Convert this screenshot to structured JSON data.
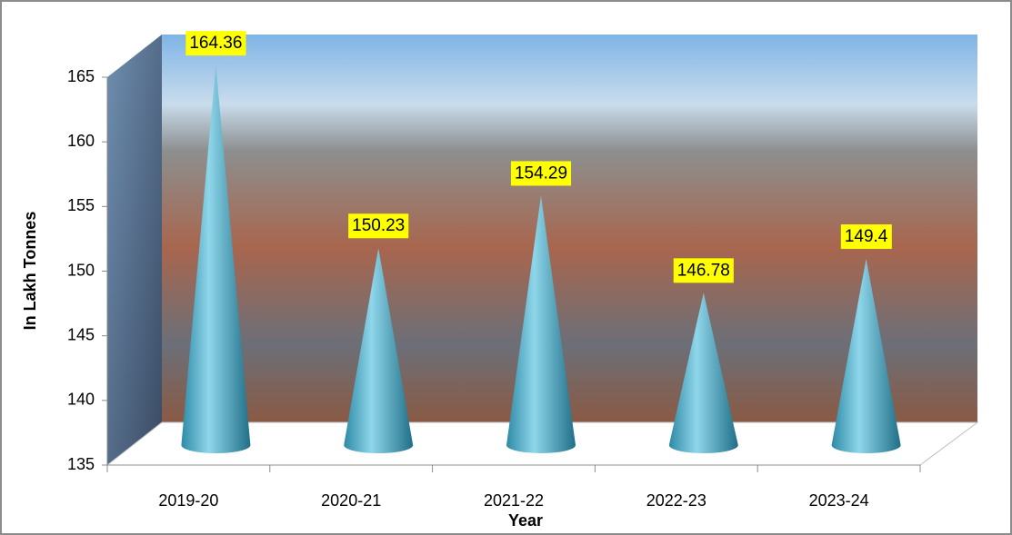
{
  "chart_data": {
    "type": "cone",
    "y_label": "In Lakh Tonnes",
    "x_label": "Year",
    "categories": [
      "2019-20",
      "2020-21",
      "2021-22",
      "2022-23",
      "2023-24"
    ],
    "values": [
      164.36,
      150.23,
      154.29,
      146.78,
      149.4
    ],
    "color": "#4bacc6",
    "label_color": "#ffff00",
    "ylim": [
      135,
      165
    ],
    "yticks": [
      135,
      140,
      145,
      150,
      155,
      160,
      165
    ]
  }
}
